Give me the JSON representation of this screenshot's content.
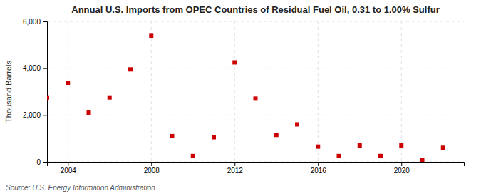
{
  "chart_data": {
    "type": "scatter",
    "title": "Annual U.S. Imports from OPEC Countries of Residual Fuel Oil, 0.31 to 1.00% Sulfur",
    "y_label": "Thousand Barrels",
    "source": "Source: U.S. Energy Information Administration",
    "x": [
      2003,
      2004,
      2005,
      2006,
      2007,
      2008,
      2009,
      2010,
      2011,
      2012,
      2013,
      2014,
      2015,
      2016,
      2017,
      2018,
      2019,
      2020,
      2021,
      2022
    ],
    "values": [
      2750,
      3380,
      2100,
      2750,
      3950,
      5380,
      1100,
      250,
      1050,
      4250,
      2700,
      1150,
      1600,
      650,
      250,
      700,
      250,
      700,
      90,
      600
    ],
    "color": "#cc0000",
    "marker": "square",
    "xlim": [
      2003,
      2023
    ],
    "xticks": [
      2004,
      2008,
      2012,
      2016,
      2020
    ],
    "ylim": [
      0,
      6000
    ],
    "yticks": [
      0,
      {
        "value": 2000,
        "label": "2,000"
      },
      {
        "value": 4000,
        "label": "4,000"
      },
      {
        "value": 6000,
        "label": "6,000"
      }
    ],
    "grid": true
  }
}
